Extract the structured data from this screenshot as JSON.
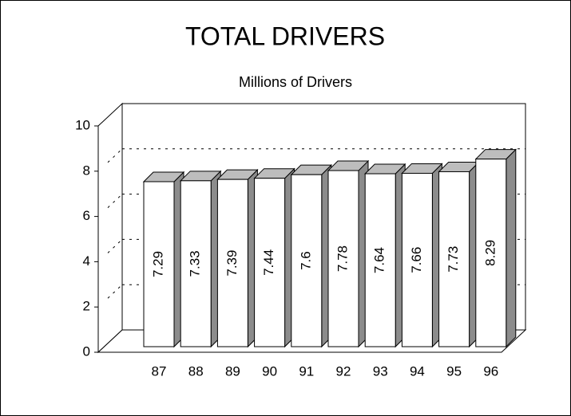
{
  "chart_data": {
    "type": "bar",
    "title": "TOTAL DRIVERS",
    "subtitle": "Millions of Drivers",
    "categories": [
      "87",
      "88",
      "89",
      "90",
      "91",
      "92",
      "93",
      "94",
      "95",
      "96"
    ],
    "values": [
      7.29,
      7.33,
      7.39,
      7.44,
      7.6,
      7.78,
      7.64,
      7.66,
      7.73,
      8.29
    ],
    "color": "#ffffff",
    "ylim": [
      0,
      10
    ],
    "yticks": [
      0,
      2,
      4,
      6,
      8,
      10
    ],
    "grid": true
  }
}
